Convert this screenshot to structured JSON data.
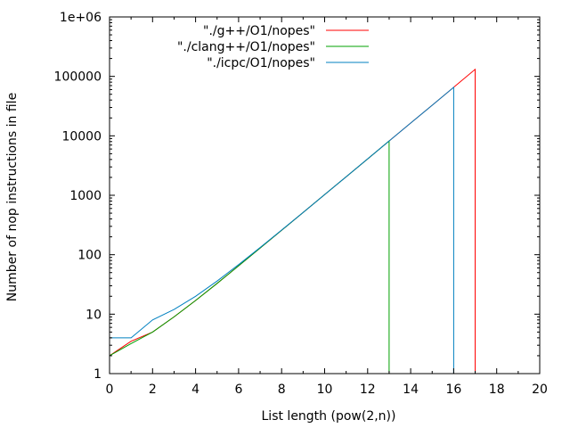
{
  "chart_data": {
    "type": "line",
    "title": "",
    "xlabel": "List length (pow(2,n))",
    "ylabel": "Number of nop instructions in file",
    "xlim": [
      0,
      20
    ],
    "ylim": [
      1,
      1000000
    ],
    "yscale": "log",
    "grid": false,
    "legend_position": "top-right",
    "x_ticks": [
      0,
      2,
      4,
      6,
      8,
      10,
      12,
      14,
      16,
      18,
      20
    ],
    "x_tick_labels": [
      "0",
      "2",
      "4",
      "6",
      "8",
      "10",
      "12",
      "14",
      "16",
      "18",
      "20"
    ],
    "y_ticks": [
      1,
      10,
      100,
      1000,
      10000,
      100000,
      1000000
    ],
    "y_tick_labels": [
      "1",
      "10",
      "100",
      "1000",
      "10000",
      "100000",
      "1e+06"
    ],
    "series": [
      {
        "name": "\"./g++/O1/nopes\"",
        "color": "#ff0000",
        "x": [
          0,
          1,
          2,
          3,
          4,
          5,
          6,
          7,
          8,
          9,
          10,
          11,
          12,
          13,
          14,
          15,
          16,
          17,
          17
        ],
        "y": [
          2,
          3.5,
          5,
          9,
          17,
          33,
          65,
          129,
          257,
          513,
          1025,
          2049,
          4097,
          8193,
          16385,
          32769,
          65537,
          131073,
          1
        ]
      },
      {
        "name": "\"./clang++/O1/nopes\"",
        "color": "#00a000",
        "x": [
          0,
          1,
          2,
          3,
          4,
          5,
          6,
          7,
          8,
          9,
          10,
          11,
          12,
          13,
          13
        ],
        "y": [
          2,
          3.2,
          5,
          9,
          17,
          33,
          65,
          129,
          257,
          513,
          1025,
          2049,
          4097,
          8193,
          1
        ]
      },
      {
        "name": "\"./icpc/O1/nopes\"",
        "color": "#0080c0",
        "x": [
          0,
          1,
          2,
          3,
          4,
          5,
          6,
          7,
          8,
          9,
          10,
          11,
          12,
          13,
          14,
          15,
          16,
          16
        ],
        "y": [
          4,
          4,
          8,
          12,
          20,
          36,
          68,
          132,
          260,
          516,
          1028,
          2052,
          4100,
          8196,
          16388,
          32772,
          65540,
          1
        ]
      }
    ]
  }
}
